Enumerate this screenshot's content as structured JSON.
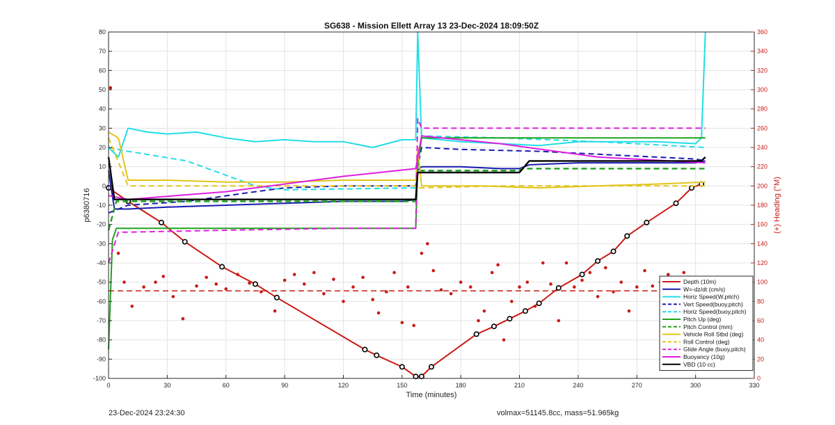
{
  "chart_data": {
    "type": "line",
    "title": "SG638 - Mission Ellett Array 13 23-Dec-2024 18:09:50Z",
    "xlabel": "Time (minutes)",
    "ylabel": "p6380716",
    "y2label": "(+) Heading (°M)",
    "xlim": [
      0,
      330
    ],
    "ylim": [
      -100,
      80
    ],
    "y2lim": [
      0,
      360
    ],
    "xticks": [
      "0",
      "30",
      "60",
      "90",
      "120",
      "150",
      "180",
      "210",
      "240",
      "270",
      "300",
      "330"
    ],
    "yticks": [
      "80",
      "70",
      "60",
      "50",
      "40",
      "30",
      "20",
      "10",
      "0",
      "-10",
      "-20",
      "-30",
      "-40",
      "-50",
      "-60",
      "-70",
      "-80",
      "-90",
      "-100"
    ],
    "y2ticks": [
      "360",
      "340",
      "320",
      "300",
      "280",
      "260",
      "240",
      "220",
      "200",
      "180",
      "160",
      "140",
      "120",
      "100",
      "80",
      "60",
      "40",
      "20",
      "0"
    ],
    "grid": true,
    "legend_placement": "bottom-right",
    "legend": [
      {
        "label": "Depth (10m)",
        "color": "#c81a14",
        "style": "solid"
      },
      {
        "label": "W=-dz/dt (cm/s)",
        "color": "#1a1ab0",
        "style": "solid"
      },
      {
        "label": "Horiz Speed(W,pitch)",
        "color": "#22dde6",
        "style": "solid"
      },
      {
        "label": "Vert Speed(buoy,pitch)",
        "color": "#1a1ab0",
        "style": "dashed"
      },
      {
        "label": "Horiz Speed(buoy,pitch)",
        "color": "#22dde6",
        "style": "dashed"
      },
      {
        "label": "Pitch Up (deg)",
        "color": "#1ea21e",
        "style": "solid"
      },
      {
        "label": "Pitch Control (mm)",
        "color": "#1ea21e",
        "style": "dashed"
      },
      {
        "label": "Vehicle Roll Stbd (deg)",
        "color": "#e2c41c",
        "style": "solid"
      },
      {
        "label": "Roll Control (deg)",
        "color": "#e2c41c",
        "style": "dashed"
      },
      {
        "label": "Glide Angle (buoy,pitch)",
        "color": "#e01ee0",
        "style": "dashed"
      },
      {
        "label": "Buoyancy (10g)",
        "color": "#e01ee0",
        "style": "solid"
      },
      {
        "label": "VBD (10 cc)",
        "color": "#000000",
        "style": "solid"
      }
    ],
    "series": [
      {
        "key": "depth",
        "axis": "left",
        "x": [
          0,
          10,
          27,
          39,
          58,
          75,
          86,
          131,
          137,
          150,
          157,
          160,
          165,
          188,
          197,
          205,
          213,
          220,
          230,
          242,
          250,
          258,
          265,
          275,
          290,
          298,
          303
        ],
        "y": [
          -1,
          -8,
          -19,
          -29,
          -42,
          -51,
          -58,
          -85,
          -88,
          -94,
          -99,
          -99,
          -94,
          -77,
          -73,
          -69,
          -65,
          -61,
          -53,
          -46,
          -39,
          -34,
          -26,
          -19,
          -9,
          -1,
          1
        ]
      },
      {
        "key": "w",
        "axis": "left",
        "x": [
          0,
          3,
          10,
          30,
          60,
          90,
          120,
          150,
          157,
          158,
          160,
          180,
          200,
          210,
          215,
          240,
          270,
          300,
          305
        ],
        "y": [
          8,
          -12,
          -12,
          -11,
          -10,
          -9,
          -8,
          -8,
          -7,
          8,
          10,
          10,
          9,
          9,
          11,
          12,
          12,
          12,
          13
        ]
      },
      {
        "key": "horiz_speed",
        "axis": "left",
        "x": [
          0,
          5,
          10,
          20,
          30,
          45,
          60,
          75,
          90,
          105,
          120,
          135,
          150,
          157,
          158,
          160,
          170,
          180,
          200,
          220,
          240,
          260,
          280,
          300,
          303,
          305
        ],
        "y": [
          20,
          15,
          30,
          28,
          27,
          28,
          25,
          23,
          24,
          23,
          23,
          20,
          24,
          24,
          80,
          25,
          24,
          23,
          22,
          21,
          23,
          23,
          23,
          22,
          25,
          80
        ]
      },
      {
        "key": "vert_speed_buoy",
        "axis": "left",
        "x": [
          0,
          10,
          40,
          75,
          90,
          120,
          157,
          158,
          160,
          180,
          220,
          260,
          300,
          305
        ],
        "y": [
          -14,
          -10,
          -8,
          -3,
          -1,
          0,
          0,
          10,
          20,
          19,
          18,
          16,
          14,
          13
        ]
      },
      {
        "key": "horiz_speed_buoy",
        "axis": "left",
        "x": [
          0,
          10,
          40,
          75,
          90,
          157,
          158,
          160,
          200,
          250,
          305
        ],
        "y": [
          20,
          18,
          13,
          0,
          -2,
          -1,
          10,
          26,
          25,
          23,
          20
        ]
      },
      {
        "key": "pitch_up",
        "axis": "left",
        "x": [
          0,
          2,
          4,
          8,
          30,
          60,
          90,
          120,
          157,
          158,
          160,
          200,
          250,
          305
        ],
        "y": [
          -85,
          -28,
          -22,
          -22,
          -22,
          -22,
          -22,
          -22,
          -22,
          10,
          25,
          25,
          25,
          25
        ]
      },
      {
        "key": "pitch_control",
        "axis": "left",
        "x": [
          0,
          4,
          60,
          120,
          157,
          158,
          210,
          211,
          305
        ],
        "y": [
          -23,
          -8,
          -8,
          -8,
          -8,
          8,
          8,
          9,
          9
        ]
      },
      {
        "key": "roll",
        "axis": "left",
        "x": [
          0,
          5,
          10,
          30,
          60,
          90,
          120,
          157,
          158,
          160,
          190,
          220,
          250,
          280,
          305
        ],
        "y": [
          28,
          25,
          3,
          3,
          2,
          2,
          3,
          3,
          20,
          0,
          0,
          -1,
          0,
          1,
          2
        ]
      },
      {
        "key": "roll_control",
        "axis": "left",
        "x": [
          0,
          10,
          60,
          120,
          157,
          158,
          200,
          250,
          305
        ],
        "y": [
          25,
          0,
          0,
          0,
          0,
          -1,
          0,
          0,
          0
        ]
      },
      {
        "key": "glide_angle",
        "axis": "left",
        "x": [
          0,
          5,
          10,
          60,
          120,
          157,
          158,
          160,
          200,
          250,
          305
        ],
        "y": [
          -40,
          -24,
          -24,
          -23,
          -22,
          -22,
          35,
          30,
          30,
          30,
          30
        ]
      },
      {
        "key": "buoyancy",
        "axis": "left",
        "x": [
          0,
          10,
          60,
          120,
          157,
          160,
          200,
          250,
          305
        ],
        "y": [
          -5,
          -7,
          -3,
          5,
          9,
          26,
          22,
          15,
          12
        ]
      },
      {
        "key": "vbd",
        "axis": "left",
        "x": [
          0,
          3,
          10,
          60,
          120,
          157,
          158,
          165,
          210,
          215,
          270,
          303,
          305
        ],
        "y": [
          15,
          -7,
          -7,
          -7,
          -7,
          -7,
          7,
          7,
          7,
          13,
          13,
          13,
          15
        ]
      },
      {
        "key": "heading_mean",
        "axis": "right",
        "x": [
          0,
          305
        ],
        "y": [
          91,
          91
        ]
      },
      {
        "key": "heading",
        "axis": "right",
        "x": [
          1,
          5,
          8,
          12,
          18,
          24,
          28,
          33,
          38,
          45,
          50,
          55,
          60,
          66,
          72,
          78,
          85,
          90,
          95,
          100,
          105,
          110,
          115,
          120,
          125,
          130,
          135,
          138,
          142,
          146,
          150,
          153,
          156,
          160,
          163,
          166,
          170,
          175,
          180,
          185,
          189,
          192,
          196,
          199,
          202,
          206,
          210,
          214,
          218,
          222,
          226,
          230,
          234,
          238,
          242,
          246,
          250,
          254,
          258,
          262,
          266,
          270,
          274,
          278,
          282,
          286,
          290,
          294,
          298,
          302
        ],
        "y": [
          302,
          130,
          100,
          75,
          95,
          100,
          106,
          85,
          62,
          96,
          105,
          98,
          93,
          108,
          99,
          90,
          70,
          102,
          108,
          98,
          110,
          88,
          103,
          80,
          95,
          105,
          82,
          68,
          90,
          110,
          58,
          95,
          55,
          130,
          140,
          112,
          92,
          88,
          100,
          95,
          60,
          70,
          110,
          118,
          40,
          80,
          95,
          100,
          75,
          120,
          98,
          60,
          120,
          95,
          102,
          110,
          85,
          115,
          90,
          100,
          70,
          95,
          112,
          96,
          100,
          108,
          104,
          110,
          100,
          90
        ]
      }
    ]
  },
  "footer": {
    "timestamp": "23-Dec-2024 23:24:30",
    "mass_info": "volmax=51145.8cc, mass=51.965kg"
  }
}
